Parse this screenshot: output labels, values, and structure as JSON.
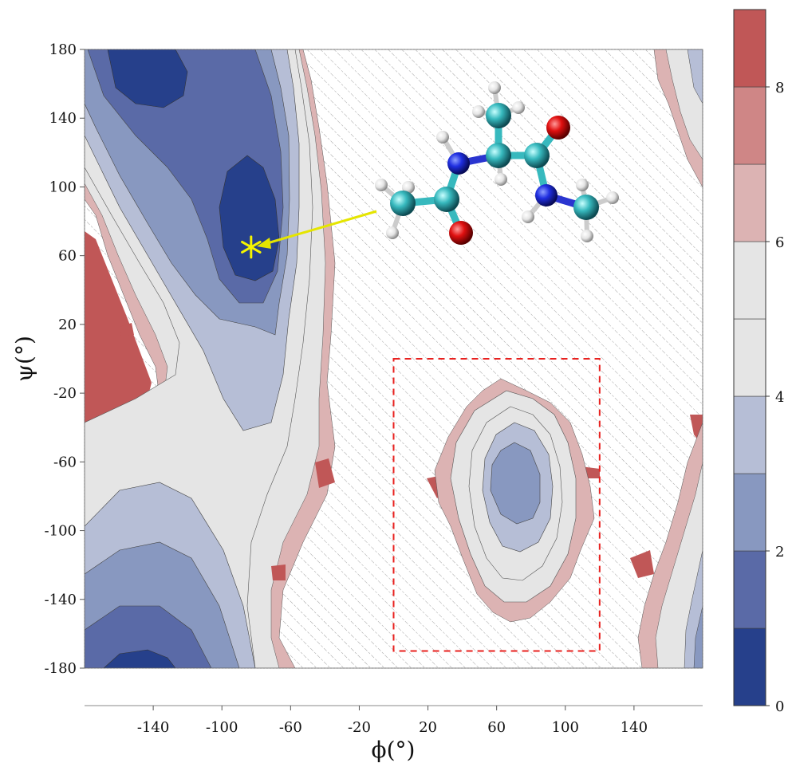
{
  "chart_data": {
    "type": "heatmap",
    "subtype": "filled contour (Ramachandran free-energy map)",
    "xlabel": "ϕ(°)",
    "ylabel": "ψ(°)",
    "xlim": [
      -180,
      180
    ],
    "ylim": [
      -180,
      180
    ],
    "x_ticks": [
      -140,
      -100,
      -60,
      -20,
      20,
      60,
      100,
      140
    ],
    "y_ticks": [
      180,
      140,
      100,
      60,
      20,
      -20,
      -60,
      -100,
      -140,
      -180
    ],
    "colorbar": {
      "range": [
        0,
        9
      ],
      "tick_labels": [
        "0",
        "2",
        "4",
        "6",
        "8"
      ],
      "tick_values": [
        0,
        2,
        4,
        6,
        8
      ],
      "levels": [
        0,
        1,
        2,
        3,
        4,
        5,
        6,
        7,
        8,
        9
      ],
      "colors": [
        "#26408b",
        "#5a6aa7",
        "#8898c0",
        "#b6bed6",
        "#e5e5e5",
        "#e5e5e5",
        "#dcb3b3",
        "#cf8686",
        "#c05757"
      ]
    },
    "unsampled_region": "hatched",
    "minima": [
      {
        "phi": -150,
        "psi": 160,
        "level": 0
      },
      {
        "phi": -83,
        "psi": 80,
        "level": 0
      },
      {
        "phi": -150,
        "psi": -175,
        "level": 0
      },
      {
        "phi": 70,
        "psi": -72,
        "level": 2
      }
    ],
    "marker": {
      "symbol": "*",
      "phi": -83,
      "psi": 65,
      "color": "#f5f500"
    },
    "highlight_box": {
      "phi": [
        0,
        120
      ],
      "psi": [
        -170,
        0
      ],
      "color": "#e8211f",
      "style": "dashed"
    },
    "grid": false,
    "legend": "colorbar right"
  },
  "molecule": {
    "labels": []
  }
}
